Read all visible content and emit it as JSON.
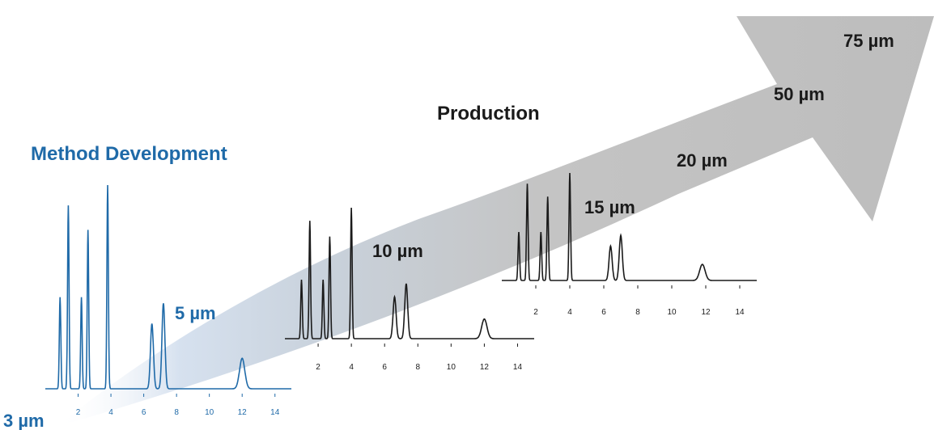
{
  "headings": {
    "method_development": "Method Development",
    "production": "Production"
  },
  "particle_sizes": [
    "3 µm",
    "5 µm",
    "10 µm",
    "15 µm",
    "20 µm",
    "50 µm",
    "75 µm"
  ],
  "colors": {
    "method_blue": "#1f6aa8",
    "chromatogram_black": "#1a1a1a",
    "arrow_gray": "#c4c4c4"
  },
  "chart_data": [
    {
      "type": "line",
      "name": "",
      "color": "#1f6aa8",
      "xlim": [
        0,
        15
      ],
      "x_ticks": [
        2,
        4,
        6,
        8,
        10,
        12,
        14
      ],
      "peaks": [
        {
          "t": 0.9,
          "h": 0.45
        },
        {
          "t": 1.4,
          "h": 0.9
        },
        {
          "t": 2.2,
          "h": 0.45
        },
        {
          "t": 2.6,
          "h": 0.78
        },
        {
          "t": 3.8,
          "h": 1.0
        },
        {
          "t": 6.5,
          "h": 0.32
        },
        {
          "t": 7.2,
          "h": 0.42
        },
        {
          "t": 12.0,
          "h": 0.15
        }
      ]
    },
    {
      "type": "line",
      "name": "",
      "color": "#1a1a1a",
      "xlim": [
        0,
        15
      ],
      "x_ticks": [
        2,
        4,
        6,
        8,
        10,
        12,
        14
      ],
      "peaks": [
        {
          "t": 1.0,
          "h": 0.45
        },
        {
          "t": 1.5,
          "h": 0.9
        },
        {
          "t": 2.3,
          "h": 0.45
        },
        {
          "t": 2.7,
          "h": 0.78
        },
        {
          "t": 4.0,
          "h": 1.0
        },
        {
          "t": 6.6,
          "h": 0.32
        },
        {
          "t": 7.3,
          "h": 0.42
        },
        {
          "t": 12.0,
          "h": 0.15
        }
      ]
    },
    {
      "type": "line",
      "name": "",
      "color": "#1a1a1a",
      "xlim": [
        0,
        15
      ],
      "x_ticks": [
        2,
        4,
        6,
        8,
        10,
        12,
        14
      ],
      "peaks": [
        {
          "t": 1.0,
          "h": 0.45
        },
        {
          "t": 1.5,
          "h": 0.9
        },
        {
          "t": 2.3,
          "h": 0.45
        },
        {
          "t": 2.7,
          "h": 0.78
        },
        {
          "t": 4.0,
          "h": 1.0
        },
        {
          "t": 6.4,
          "h": 0.32
        },
        {
          "t": 7.0,
          "h": 0.42
        },
        {
          "t": 11.8,
          "h": 0.15
        }
      ]
    }
  ]
}
